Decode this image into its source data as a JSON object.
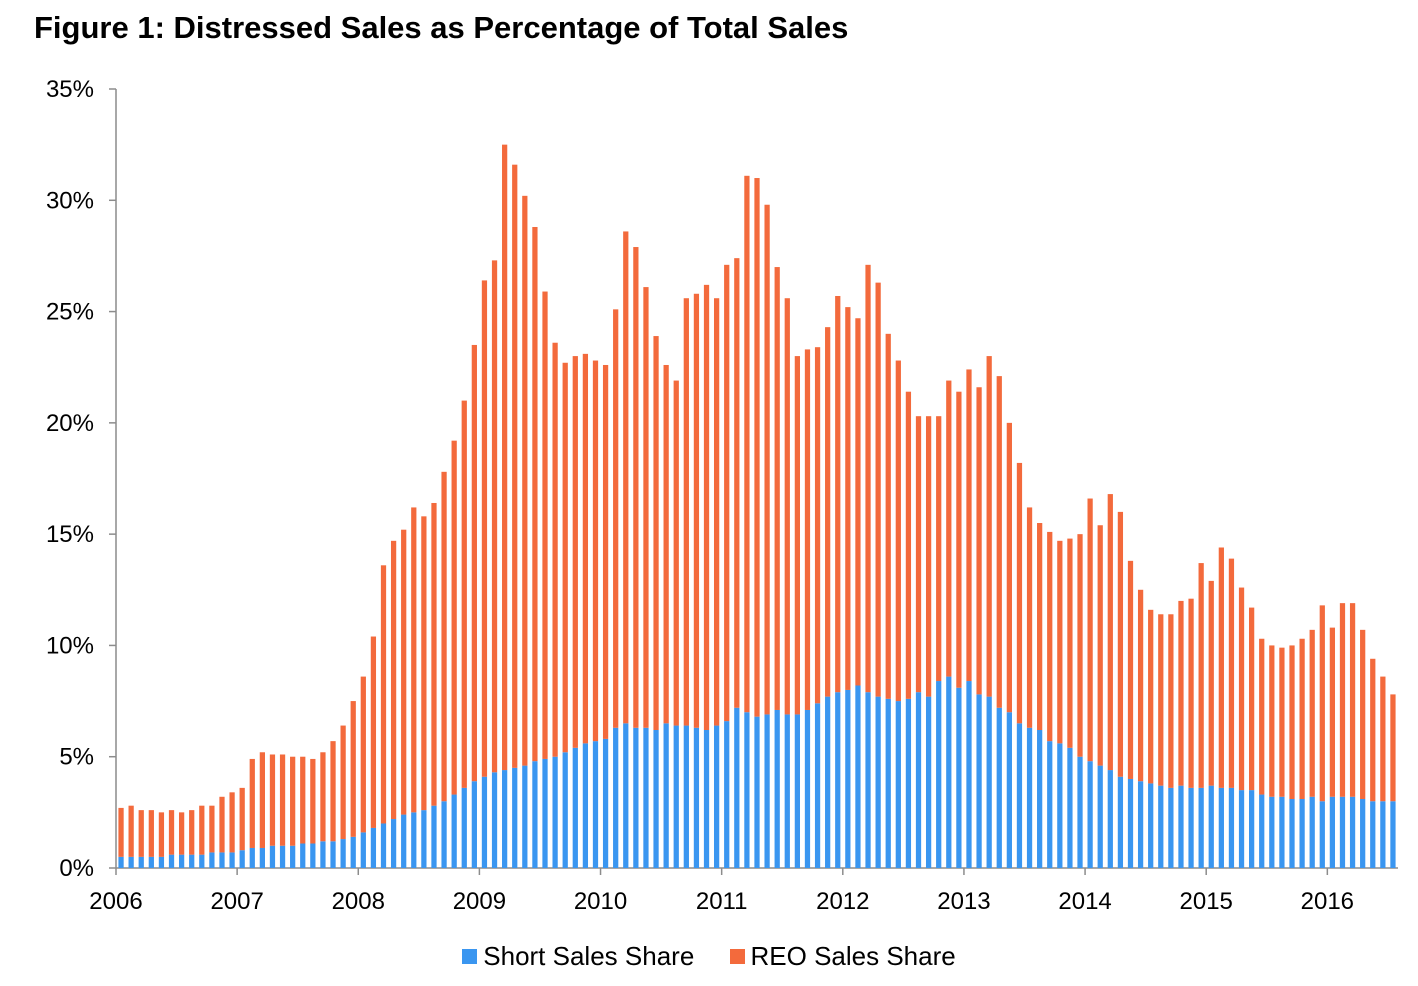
{
  "title": "Figure 1: Distressed Sales as Percentage of Total Sales",
  "chart_data": {
    "type": "bar",
    "stacked": true,
    "x_start": "2006-01",
    "x_frequency": "monthly",
    "xtick_labels": [
      "2006",
      "2007",
      "2008",
      "2009",
      "2010",
      "2011",
      "2012",
      "2013",
      "2014",
      "2015",
      "2016"
    ],
    "ytick_labels": [
      "0%",
      "5%",
      "10%",
      "15%",
      "20%",
      "25%",
      "30%",
      "35%"
    ],
    "ylim": [
      0,
      35
    ],
    "yunit": "%",
    "legend_position": "bottom",
    "grid": false,
    "series": [
      {
        "name": "Short Sales Share",
        "color": "#3a96f0",
        "values": [
          0.5,
          0.5,
          0.5,
          0.5,
          0.5,
          0.6,
          0.6,
          0.6,
          0.6,
          0.7,
          0.7,
          0.7,
          0.8,
          0.9,
          0.9,
          1.0,
          1.0,
          1.0,
          1.1,
          1.1,
          1.2,
          1.2,
          1.3,
          1.4,
          1.6,
          1.8,
          2.0,
          2.2,
          2.4,
          2.5,
          2.6,
          2.8,
          3.0,
          3.3,
          3.6,
          3.9,
          4.1,
          4.3,
          4.4,
          4.5,
          4.6,
          4.8,
          4.9,
          5.0,
          5.2,
          5.4,
          5.6,
          5.7,
          5.8,
          6.3,
          6.5,
          6.3,
          6.3,
          6.2,
          6.5,
          6.4,
          6.4,
          6.3,
          6.2,
          6.4,
          6.6,
          7.2,
          7.0,
          6.8,
          6.9,
          7.1,
          6.9,
          6.9,
          7.1,
          7.4,
          7.7,
          7.9,
          8.0,
          8.2,
          7.9,
          7.7,
          7.6,
          7.5,
          7.6,
          7.9,
          7.7,
          8.4,
          8.6,
          8.1,
          8.4,
          7.8,
          7.7,
          7.2,
          7.0,
          6.5,
          6.3,
          6.2,
          5.7,
          5.6,
          5.4,
          5.0,
          4.8,
          4.6,
          4.4,
          4.1,
          4.0,
          3.9,
          3.8,
          3.7,
          3.6,
          3.7,
          3.6,
          3.6,
          3.7,
          3.6,
          3.6,
          3.5,
          3.5,
          3.3,
          3.2,
          3.2,
          3.1,
          3.1,
          3.2,
          3.0,
          3.2,
          3.2,
          3.2,
          3.1,
          3.0,
          3.0,
          3.0
        ]
      },
      {
        "name": "REO Sales Share",
        "color": "#f36a3c",
        "values": [
          2.2,
          2.3,
          2.1,
          2.1,
          2.0,
          2.0,
          1.9,
          2.0,
          2.2,
          2.1,
          2.5,
          2.7,
          2.8,
          4.0,
          4.3,
          4.1,
          4.1,
          4.0,
          3.9,
          3.8,
          4.0,
          4.5,
          5.1,
          6.1,
          7.0,
          8.6,
          11.6,
          12.5,
          12.8,
          13.7,
          13.2,
          13.6,
          14.8,
          15.9,
          17.4,
          19.6,
          22.3,
          23.0,
          28.1,
          27.1,
          25.6,
          24.0,
          21.0,
          18.6,
          17.5,
          17.6,
          17.5,
          17.1,
          16.8,
          18.8,
          22.1,
          21.6,
          19.8,
          17.7,
          16.1,
          15.5,
          19.2,
          19.5,
          20.0,
          19.2,
          20.5,
          20.2,
          24.1,
          24.2,
          22.9,
          19.9,
          18.7,
          16.1,
          16.2,
          16.0,
          16.6,
          17.8,
          17.2,
          16.5,
          19.2,
          18.6,
          16.4,
          15.3,
          13.8,
          12.4,
          12.6,
          11.9,
          13.3,
          13.3,
          14.0,
          13.8,
          15.3,
          14.9,
          13.0,
          11.7,
          9.9,
          9.3,
          9.4,
          9.1,
          9.4,
          10.0,
          11.8,
          10.8,
          12.4,
          11.9,
          9.8,
          8.6,
          7.8,
          7.7,
          7.8,
          8.3,
          8.5,
          10.1,
          9.2,
          10.8,
          10.3,
          9.1,
          8.2,
          7.0,
          6.8,
          6.7,
          6.9,
          7.2,
          7.5,
          8.8,
          7.6,
          8.7,
          8.7,
          7.6,
          6.4,
          5.6,
          4.8
        ]
      }
    ]
  }
}
